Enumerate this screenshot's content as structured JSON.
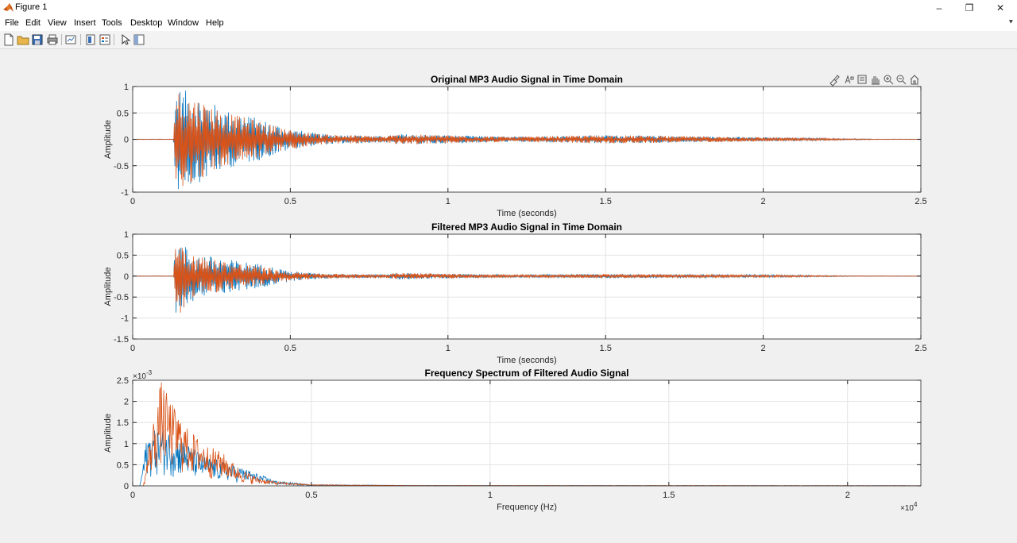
{
  "window": {
    "title": "Figure 1",
    "controls": {
      "minimize": "–",
      "maximize": "❐",
      "close": "✕"
    }
  },
  "menu": [
    "File",
    "Edit",
    "View",
    "Insert",
    "Tools",
    "Desktop",
    "Window",
    "Help"
  ],
  "toolbar": {
    "buttons": [
      "new-figure",
      "open-file",
      "save-figure",
      "print-figure",
      "link-plot",
      "insert-colorbar",
      "insert-legend",
      "edit-plot",
      "property-inspector"
    ]
  },
  "axes_toolbar": [
    "brush",
    "data-tips",
    "export",
    "pan",
    "zoom-in",
    "zoom-out",
    "restore-view"
  ],
  "colors": {
    "series1": "#0072BD",
    "series2": "#D95319",
    "grid": "#e3e3e3",
    "axis": "#262626"
  },
  "chart_data": [
    {
      "type": "line",
      "title": "Original MP3 Audio Signal in Time Domain",
      "xlabel": "Time (seconds)",
      "ylabel": "Amplitude",
      "xlim": [
        0,
        2.5
      ],
      "ylim": [
        -1,
        1
      ],
      "xticks": [
        0,
        0.5,
        1,
        1.5,
        2,
        2.5
      ],
      "xtick_labels": [
        "0",
        "0.5",
        "1",
        "1.5",
        "2",
        "2.5"
      ],
      "yticks": [
        -1,
        -0.5,
        0,
        0.5,
        1
      ],
      "ytick_labels": [
        "-1",
        "-0.5",
        "0",
        "0.5",
        "1"
      ],
      "grid": true,
      "exponent_label": "",
      "series": [
        {
          "color": "#0072BD",
          "envelope": [
            [
              0,
              0.005
            ],
            [
              0.13,
              0.005
            ],
            [
              0.135,
              1.0
            ],
            [
              0.2,
              0.85
            ],
            [
              0.3,
              0.55
            ],
            [
              0.4,
              0.4
            ],
            [
              0.5,
              0.2
            ],
            [
              0.6,
              0.1
            ],
            [
              0.8,
              0.06
            ],
            [
              0.85,
              0.1
            ],
            [
              1.2,
              0.05
            ],
            [
              1.5,
              0.08
            ],
            [
              2.0,
              0.04
            ],
            [
              2.2,
              0.02
            ],
            [
              2.36,
              0.005
            ]
          ]
        },
        {
          "color": "#D95319",
          "envelope": [
            [
              0,
              0.005
            ],
            [
              0.13,
              0.005
            ],
            [
              0.135,
              0.95
            ],
            [
              0.2,
              0.8
            ],
            [
              0.3,
              0.5
            ],
            [
              0.4,
              0.35
            ],
            [
              0.5,
              0.18
            ],
            [
              0.6,
              0.1
            ],
            [
              0.8,
              0.06
            ],
            [
              0.85,
              0.1
            ],
            [
              1.2,
              0.05
            ],
            [
              1.5,
              0.08
            ],
            [
              2.0,
              0.04
            ],
            [
              2.2,
              0.02
            ],
            [
              2.36,
              0.005
            ]
          ]
        }
      ]
    },
    {
      "type": "line",
      "title": "Filtered MP3 Audio Signal in Time Domain",
      "xlabel": "Time (seconds)",
      "ylabel": "Amplitude",
      "xlim": [
        0,
        2.5
      ],
      "ylim": [
        -1.5,
        1
      ],
      "xticks": [
        0,
        0.5,
        1,
        1.5,
        2,
        2.5
      ],
      "xtick_labels": [
        "0",
        "0.5",
        "1",
        "1.5",
        "2",
        "2.5"
      ],
      "yticks": [
        -1.5,
        -1,
        -0.5,
        0,
        0.5,
        1
      ],
      "ytick_labels": [
        "-1.5",
        "-1",
        "-0.5",
        "0",
        "0.5",
        "1"
      ],
      "grid": true,
      "exponent_label": "",
      "series": [
        {
          "color": "#0072BD",
          "envelope": [
            [
              0,
              0.003
            ],
            [
              0.13,
              0.003
            ],
            [
              0.135,
              0.9
            ],
            [
              0.2,
              0.55
            ],
            [
              0.3,
              0.4
            ],
            [
              0.4,
              0.3
            ],
            [
              0.5,
              0.12
            ],
            [
              0.6,
              0.06
            ],
            [
              0.8,
              0.04
            ],
            [
              0.84,
              0.08
            ],
            [
              1.2,
              0.03
            ],
            [
              1.5,
              0.05
            ],
            [
              2.0,
              0.03
            ],
            [
              2.2,
              0.015
            ],
            [
              2.36,
              0.003
            ]
          ]
        },
        {
          "color": "#D95319",
          "envelope": [
            [
              0,
              0.003
            ],
            [
              0.13,
              0.003
            ],
            [
              0.135,
              1.05
            ],
            [
              0.2,
              0.5
            ],
            [
              0.3,
              0.35
            ],
            [
              0.4,
              0.25
            ],
            [
              0.5,
              0.1
            ],
            [
              0.6,
              0.06
            ],
            [
              0.8,
              0.04
            ],
            [
              0.84,
              0.08
            ],
            [
              1.2,
              0.03
            ],
            [
              1.5,
              0.05
            ],
            [
              2.0,
              0.03
            ],
            [
              2.2,
              0.015
            ],
            [
              2.36,
              0.003
            ]
          ]
        }
      ]
    },
    {
      "type": "line",
      "title": "Frequency Spectrum of Filtered Audio Signal",
      "xlabel": "Frequency (Hz)",
      "ylabel": "Amplitude",
      "xlim": [
        0,
        22050
      ],
      "ylim": [
        0,
        0.0025
      ],
      "xticks": [
        0,
        5000,
        10000,
        15000,
        20000
      ],
      "xtick_labels": [
        "0",
        "0.5",
        "1",
        "1.5",
        "2"
      ],
      "yticks": [
        0,
        0.0005,
        0.001,
        0.0015,
        0.002,
        0.0025
      ],
      "ytick_labels": [
        "0",
        "0.5",
        "1",
        "1.5",
        "2",
        "2.5"
      ],
      "grid": true,
      "exponent_label": "×10",
      "exponent_power_y": "-3",
      "exponent_power_x": "4",
      "series": [
        {
          "color": "#0072BD",
          "envelope": [
            [
              0,
              0
            ],
            [
              200,
              0
            ],
            [
              400,
              0.0012
            ],
            [
              800,
              0.0014
            ],
            [
              1200,
              0.0012
            ],
            [
              2000,
              0.0007
            ],
            [
              3000,
              0.00045
            ],
            [
              4000,
              0.00012
            ],
            [
              5000,
              3e-05
            ],
            [
              8000,
              1e-05
            ],
            [
              22050,
              5e-06
            ]
          ]
        },
        {
          "color": "#D95319",
          "envelope": [
            [
              0,
              0
            ],
            [
              300,
              0
            ],
            [
              500,
              0.0012
            ],
            [
              800,
              0.0025
            ],
            [
              1000,
              0.0021
            ],
            [
              1500,
              0.0014
            ],
            [
              2000,
              0.001
            ],
            [
              2500,
              0.0008
            ],
            [
              3000,
              0.0004
            ],
            [
              3500,
              0.0002
            ],
            [
              4000,
              0.0001
            ],
            [
              5000,
              3e-05
            ],
            [
              8000,
              1e-05
            ],
            [
              22050,
              5e-06
            ]
          ]
        }
      ]
    }
  ]
}
